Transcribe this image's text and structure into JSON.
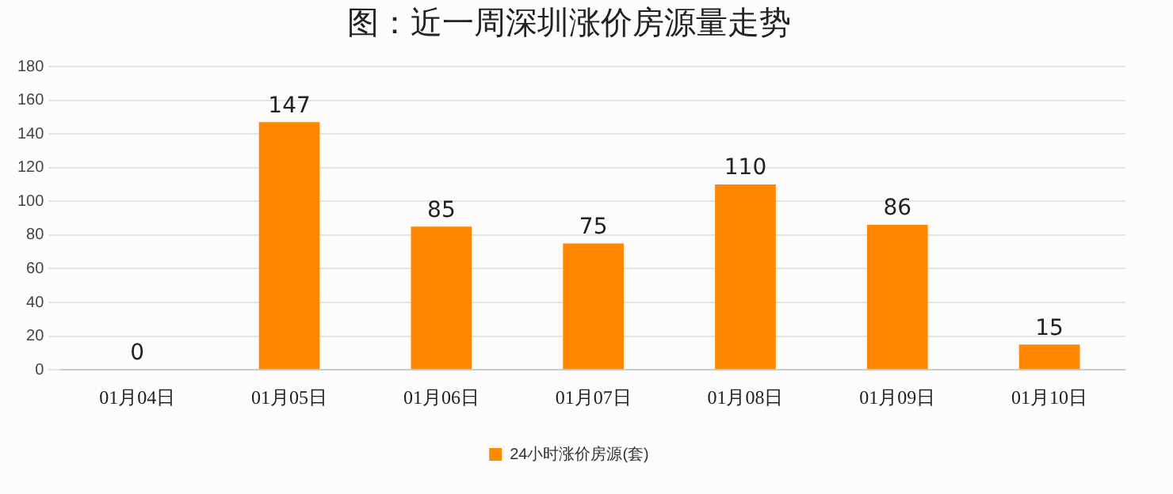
{
  "chart_data": {
    "type": "bar",
    "title": "图：近一周深圳涨价房源量走势",
    "categories": [
      "01月04日",
      "01月05日",
      "01月06日",
      "01月07日",
      "01月08日",
      "01月09日",
      "01月10日"
    ],
    "series": [
      {
        "name": "24小时涨价房源(套)",
        "color": "#ff8800",
        "values": [
          0,
          147,
          85,
          75,
          110,
          86,
          15
        ]
      }
    ],
    "ylim": [
      0,
      180
    ],
    "yticks": [
      0,
      20,
      40,
      60,
      80,
      100,
      120,
      140,
      160,
      180
    ],
    "grid": "y",
    "legend": "bottom",
    "data_labels": true
  }
}
